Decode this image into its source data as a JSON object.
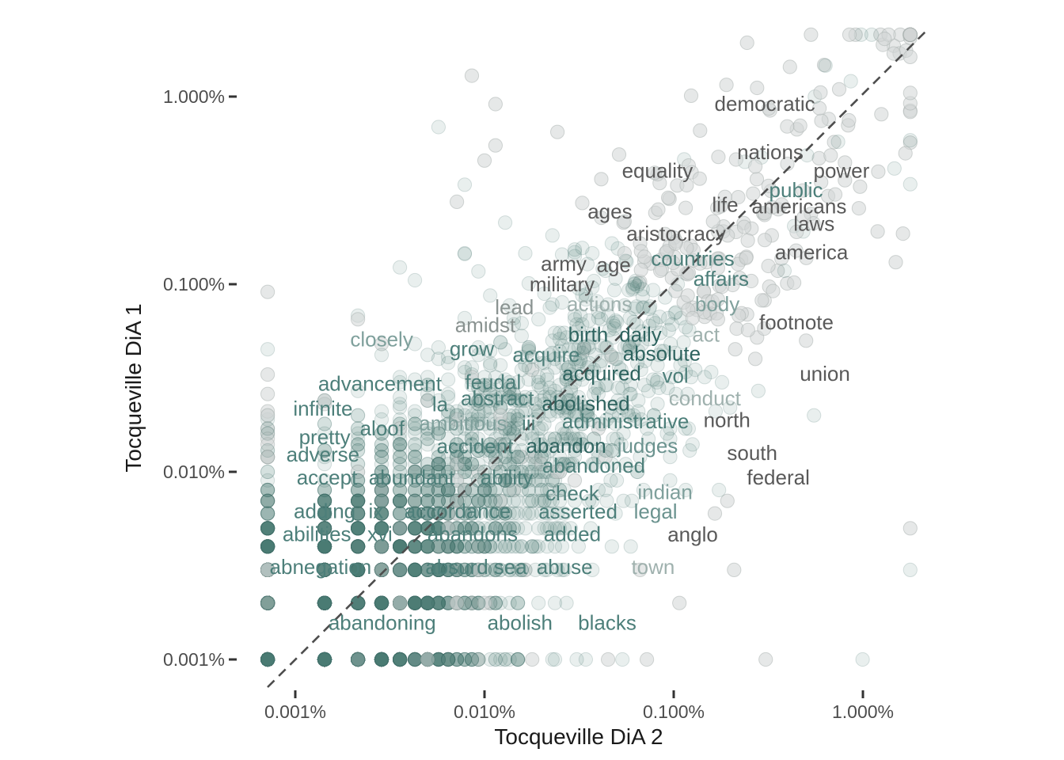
{
  "figure": {
    "background": "#ffffff"
  },
  "chart_data": {
    "type": "scatter",
    "title": "",
    "xlabel": "Tocqueville DiA 2",
    "ylabel": "Tocqueville DiA 1",
    "axes_scale": "log-log (word relative frequency, percent)",
    "grid": "off",
    "identity_line": {
      "shown": true,
      "style": "dashed",
      "color": "#4d4d4d"
    },
    "x_ticks": [
      {
        "label": "0.001%",
        "value": 0.001
      },
      {
        "label": "0.010%",
        "value": 0.01
      },
      {
        "label": "0.100%",
        "value": 0.1
      },
      {
        "label": "1.000%",
        "value": 1
      }
    ],
    "y_ticks": [
      {
        "label": "1.000%",
        "value": 1
      },
      {
        "label": "0.100%",
        "value": 0.1
      },
      {
        "label": "0.010%",
        "value": 0.01
      },
      {
        "label": "0.001%",
        "value": 0.001
      }
    ],
    "x_range_percent": [
      0.0007,
      2.8
    ],
    "y_range_percent": [
      0.001,
      2.2
    ],
    "palette": {
      "darkgray": "#595959",
      "gray": "#8a9391",
      "lgrayteal": "#9fb1ae",
      "lteal": "#7fa09c",
      "mteal": "#6b938f",
      "teal": "#4d7f7a",
      "dkteal": "#2f6460"
    },
    "labeled_words": [
      {
        "w": "democratic",
        "x": 0.303,
        "y": 0.916,
        "c": "darkgray"
      },
      {
        "w": "nations",
        "x": 0.324,
        "y": 0.507,
        "c": "darkgray"
      },
      {
        "w": "equality",
        "x": 0.082,
        "y": 0.404,
        "c": "darkgray"
      },
      {
        "w": "power",
        "x": 0.77,
        "y": 0.404,
        "c": "darkgray"
      },
      {
        "w": "public",
        "x": 0.443,
        "y": 0.318,
        "c": "teal"
      },
      {
        "w": "ages",
        "x": 0.046,
        "y": 0.245,
        "c": "darkgray"
      },
      {
        "w": "life",
        "x": 0.187,
        "y": 0.265,
        "c": "darkgray"
      },
      {
        "w": "americans",
        "x": 0.46,
        "y": 0.26,
        "c": "darkgray"
      },
      {
        "w": "laws",
        "x": 0.552,
        "y": 0.21,
        "c": "darkgray"
      },
      {
        "w": "america",
        "x": 0.535,
        "y": 0.148,
        "c": "darkgray"
      },
      {
        "w": "aristocracy",
        "x": 0.103,
        "y": 0.186,
        "c": "darkgray"
      },
      {
        "w": "countries",
        "x": 0.126,
        "y": 0.137,
        "c": "teal"
      },
      {
        "w": "army",
        "x": 0.0262,
        "y": 0.129,
        "c": "darkgray"
      },
      {
        "w": "age",
        "x": 0.0482,
        "y": 0.127,
        "c": "darkgray"
      },
      {
        "w": "military",
        "x": 0.0257,
        "y": 0.1,
        "c": "darkgray"
      },
      {
        "w": "affairs",
        "x": 0.178,
        "y": 0.107,
        "c": "teal"
      },
      {
        "w": "actions",
        "x": 0.0405,
        "y": 0.0785,
        "c": "lgrayteal"
      },
      {
        "w": "body",
        "x": 0.17,
        "y": 0.0784,
        "c": "lteal"
      },
      {
        "w": "lead",
        "x": 0.0144,
        "y": 0.0753,
        "c": "gray"
      },
      {
        "w": "amidst",
        "x": 0.0101,
        "y": 0.0605,
        "c": "gray"
      },
      {
        "w": "footnote",
        "x": 0.445,
        "y": 0.0627,
        "c": "darkgray"
      },
      {
        "w": "birth",
        "x": 0.0353,
        "y": 0.054,
        "c": "dkteal"
      },
      {
        "w": "daily",
        "x": 0.0667,
        "y": 0.054,
        "c": "dkteal"
      },
      {
        "w": "act",
        "x": 0.148,
        "y": 0.054,
        "c": "lgrayteal"
      },
      {
        "w": "closely",
        "x": 0.00286,
        "y": 0.051,
        "c": "lteal"
      },
      {
        "w": "grow",
        "x": 0.00857,
        "y": 0.0454,
        "c": "teal"
      },
      {
        "w": "acquire",
        "x": 0.0212,
        "y": 0.0421,
        "c": "teal"
      },
      {
        "w": "absolute",
        "x": 0.0865,
        "y": 0.0428,
        "c": "dkteal"
      },
      {
        "w": "acquired",
        "x": 0.0416,
        "y": 0.0336,
        "c": "dkteal"
      },
      {
        "w": "vol",
        "x": 0.102,
        "y": 0.0325,
        "c": "teal"
      },
      {
        "w": "union",
        "x": 0.63,
        "y": 0.0333,
        "c": "darkgray"
      },
      {
        "w": "advancement",
        "x": 0.0028,
        "y": 0.0295,
        "c": "teal"
      },
      {
        "w": "feudal",
        "x": 0.0111,
        "y": 0.0301,
        "c": "teal"
      },
      {
        "w": "abstract",
        "x": 0.0117,
        "y": 0.0247,
        "c": "teal"
      },
      {
        "w": "la",
        "x": 0.00583,
        "y": 0.023,
        "c": "teal"
      },
      {
        "w": "abolished",
        "x": 0.0343,
        "y": 0.0232,
        "c": "dkteal"
      },
      {
        "w": "conduct",
        "x": 0.146,
        "y": 0.0247,
        "c": "lgrayteal"
      },
      {
        "w": "infinite",
        "x": 0.0014,
        "y": 0.0218,
        "c": "teal"
      },
      {
        "w": "aloof",
        "x": 0.00288,
        "y": 0.0171,
        "c": "teal"
      },
      {
        "w": "ambitious",
        "x": 0.0077,
        "y": 0.0182,
        "c": "lteal"
      },
      {
        "w": "iii",
        "x": 0.0171,
        "y": 0.0182,
        "c": "teal"
      },
      {
        "w": "administrative",
        "x": 0.0556,
        "y": 0.0186,
        "c": "teal"
      },
      {
        "w": "north",
        "x": 0.191,
        "y": 0.0189,
        "c": "darkgray"
      },
      {
        "w": "pretty",
        "x": 0.00143,
        "y": 0.0153,
        "c": "teal"
      },
      {
        "w": "adverse",
        "x": 0.0014,
        "y": 0.0124,
        "c": "teal"
      },
      {
        "w": "accident",
        "x": 0.0089,
        "y": 0.0137,
        "c": "teal"
      },
      {
        "w": "abandon",
        "x": 0.027,
        "y": 0.0138,
        "c": "dkteal"
      },
      {
        "w": "judges",
        "x": 0.0728,
        "y": 0.0138,
        "c": "mteal"
      },
      {
        "w": "abandoned",
        "x": 0.0378,
        "y": 0.0108,
        "c": "teal"
      },
      {
        "w": "south",
        "x": 0.26,
        "y": 0.0126,
        "c": "darkgray"
      },
      {
        "w": "accept",
        "x": 0.00147,
        "y": 0.00935,
        "c": "teal"
      },
      {
        "w": "abundant",
        "x": 0.00412,
        "y": 0.00935,
        "c": "teal"
      },
      {
        "w": "ability",
        "x": 0.0131,
        "y": 0.00932,
        "c": "teal"
      },
      {
        "w": "federal",
        "x": 0.357,
        "y": 0.00935,
        "c": "darkgray"
      },
      {
        "w": "check",
        "x": 0.0291,
        "y": 0.0077,
        "c": "teal"
      },
      {
        "w": "indian",
        "x": 0.09,
        "y": 0.0078,
        "c": "lteal"
      },
      {
        "w": "adding",
        "x": 0.00143,
        "y": 0.00618,
        "c": "teal"
      },
      {
        "w": "ix",
        "x": 0.00267,
        "y": 0.00618,
        "c": "teal"
      },
      {
        "w": "accordance",
        "x": 0.00721,
        "y": 0.00618,
        "c": "teal"
      },
      {
        "w": "asserted",
        "x": 0.0312,
        "y": 0.00615,
        "c": "teal"
      },
      {
        "w": "legal",
        "x": 0.0802,
        "y": 0.00615,
        "c": "mteal"
      },
      {
        "w": "abilities",
        "x": 0.0013,
        "y": 0.00467,
        "c": "teal"
      },
      {
        "w": "xvi",
        "x": 0.0028,
        "y": 0.00467,
        "c": "teal"
      },
      {
        "w": "abandons",
        "x": 0.00865,
        "y": 0.00467,
        "c": "teal"
      },
      {
        "w": "added",
        "x": 0.0291,
        "y": 0.00467,
        "c": "teal"
      },
      {
        "w": "anglo",
        "x": 0.126,
        "y": 0.00465,
        "c": "darkgray"
      },
      {
        "w": "abnegation",
        "x": 0.00136,
        "y": 0.00312,
        "c": "teal"
      },
      {
        "w": "absurd",
        "x": 0.00714,
        "y": 0.00312,
        "c": "teal"
      },
      {
        "w": "sea",
        "x": 0.0137,
        "y": 0.00312,
        "c": "teal"
      },
      {
        "w": "abuse",
        "x": 0.0265,
        "y": 0.00312,
        "c": "teal"
      },
      {
        "w": "town",
        "x": 0.0778,
        "y": 0.00312,
        "c": "lgrayteal"
      },
      {
        "w": "abandoning",
        "x": 0.00288,
        "y": 0.00157,
        "c": "teal"
      },
      {
        "w": "abolish",
        "x": 0.0154,
        "y": 0.00157,
        "c": "teal"
      },
      {
        "w": "blacks",
        "x": 0.0445,
        "y": 0.00157,
        "c": "teal"
      }
    ],
    "background_cloud": {
      "description": "thousands of unlabeled translucent word-frequency points, dense in lower-left, spreading along the identity diagonal",
      "approx_points": 4600,
      "seed": 7,
      "teal_fill": "rgba(77,124,119,0.12)",
      "teal_stroke": "rgba(66,112,107,0.20)",
      "gray_fill": "rgba(209,214,213,0.55)",
      "gray_stroke": "rgba(168,175,174,0.50)",
      "point_radius_px": 8.6
    }
  }
}
